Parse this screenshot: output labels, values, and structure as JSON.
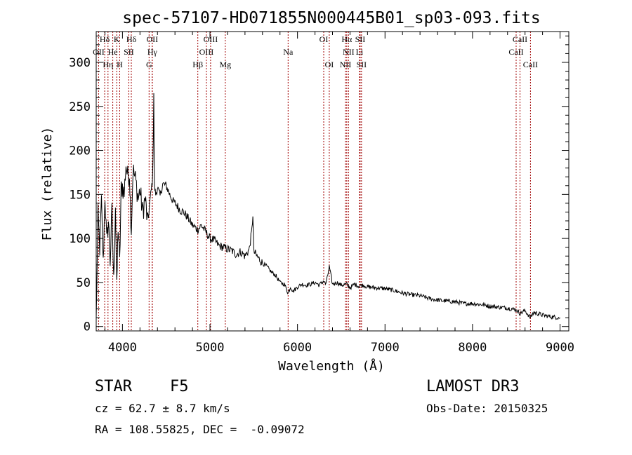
{
  "chart_data": {
    "type": "line",
    "title": "spec-57107-HD071855N000445B01_sp03-093.fits",
    "xlabel": "Wavelength (Å)",
    "ylabel": "Flux (relative)",
    "xlim": [
      3700,
      9100
    ],
    "ylim": [
      -5,
      335
    ],
    "xticks": [
      4000,
      5000,
      6000,
      7000,
      8000,
      9000
    ],
    "yticks": [
      0,
      50,
      100,
      150,
      200,
      250,
      300
    ],
    "series": [
      {
        "name": "flux",
        "x": [
          3700,
          3720,
          3740,
          3760,
          3780,
          3800,
          3820,
          3840,
          3860,
          3880,
          3900,
          3920,
          3935,
          3950,
          3968,
          3985,
          4000,
          4020,
          4040,
          4060,
          4080,
          4101,
          4120,
          4140,
          4160,
          4180,
          4200,
          4230,
          4260,
          4290,
          4310,
          4330,
          4345,
          4352,
          4358,
          4365,
          4380,
          4400,
          4430,
          4460,
          4500,
          4540,
          4580,
          4620,
          4660,
          4700,
          4750,
          4800,
          4861,
          4900,
          4950,
          5000,
          5050,
          5100,
          5150,
          5200,
          5250,
          5300,
          5350,
          5400,
          5450,
          5480,
          5490,
          5500,
          5550,
          5600,
          5650,
          5700,
          5750,
          5800,
          5850,
          5893,
          5920,
          5950,
          6000,
          6050,
          6100,
          6150,
          6200,
          6250,
          6300,
          6320,
          6340,
          6363,
          6400,
          6450,
          6500,
          6563,
          6600,
          6650,
          6700,
          6750,
          6800,
          6900,
          7000,
          7100,
          7200,
          7300,
          7400,
          7500,
          7600,
          7700,
          7800,
          7900,
          8000,
          8100,
          8200,
          8300,
          8400,
          8500,
          8542,
          8600,
          8662,
          8700,
          8800,
          8900,
          9000
        ],
        "values": [
          5,
          125,
          90,
          140,
          70,
          150,
          95,
          120,
          75,
          130,
          50,
          140,
          40,
          115,
          70,
          155,
          160,
          150,
          185,
          170,
          175,
          110,
          178,
          170,
          160,
          145,
          155,
          130,
          145,
          115,
          140,
          155,
          170,
          215,
          262,
          160,
          150,
          158,
          148,
          162,
          160,
          150,
          142,
          138,
          132,
          130,
          123,
          115,
          110,
          115,
          108,
          100,
          98,
          92,
          90,
          88,
          86,
          82,
          85,
          80,
          88,
          110,
          128,
          85,
          78,
          72,
          68,
          62,
          58,
          50,
          48,
          38,
          45,
          40,
          45,
          48,
          47,
          48,
          50,
          47,
          52,
          48,
          55,
          68,
          48,
          50,
          47,
          48,
          44,
          48,
          46,
          47,
          45,
          44,
          43,
          41,
          38,
          36,
          35,
          32,
          30,
          29,
          28,
          26,
          26,
          25,
          23,
          22,
          21,
          19,
          15,
          18,
          10,
          16,
          13,
          11,
          10
        ]
      }
    ],
    "lines": [
      {
        "label": "Hδ",
        "x": 3797,
        "row": 0
      },
      {
        "label": "OII",
        "x": 3727,
        "row": 1
      },
      {
        "label": "K",
        "x": 3934,
        "row": 0
      },
      {
        "label": "He",
        "x": 3889,
        "row": 1
      },
      {
        "label": "Hη",
        "x": 3835,
        "row": 2
      },
      {
        "label": "Hδ",
        "x": 4101,
        "row": 0
      },
      {
        "label": "SII",
        "x": 4072,
        "row": 1
      },
      {
        "label": "H",
        "x": 3968,
        "row": 2
      },
      {
        "label": "OII",
        "x": 4340,
        "row": 0
      },
      {
        "label": "Hγ",
        "x": 4340,
        "row": 1
      },
      {
        "label": "G",
        "x": 4304,
        "row": 2
      },
      {
        "label": "OIII",
        "x": 5007,
        "row": 0
      },
      {
        "label": "OIII",
        "x": 4959,
        "row": 1
      },
      {
        "label": "Hβ",
        "x": 4861,
        "row": 2
      },
      {
        "label": "Mg",
        "x": 5175,
        "row": 2
      },
      {
        "label": "Na",
        "x": 5893,
        "row": 1
      },
      {
        "label": "OI",
        "x": 6300,
        "row": 0
      },
      {
        "label": "OI",
        "x": 6363,
        "row": 2
      },
      {
        "label": "Hα",
        "x": 6563,
        "row": 0
      },
      {
        "label": "SII",
        "x": 6716,
        "row": 0
      },
      {
        "label": "NII",
        "x": 6583,
        "row": 1
      },
      {
        "label": "Li",
        "x": 6708,
        "row": 1
      },
      {
        "label": "NII",
        "x": 6548,
        "row": 2
      },
      {
        "label": "SII",
        "x": 6731,
        "row": 2
      },
      {
        "label": "CaII",
        "x": 8542,
        "row": 0
      },
      {
        "label": "CaII",
        "x": 8498,
        "row": 1
      },
      {
        "label": "CaII",
        "x": 8662,
        "row": 2
      }
    ]
  },
  "info": {
    "object_type": "STAR",
    "subclass": "F5",
    "survey": "LAMOST DR3",
    "velocity": "cz = 62.7 ± 8.7 km/s",
    "obs_date": "Obs-Date: 20150325",
    "coords": "RA = 108.55825, DEC =  -0.09072"
  }
}
